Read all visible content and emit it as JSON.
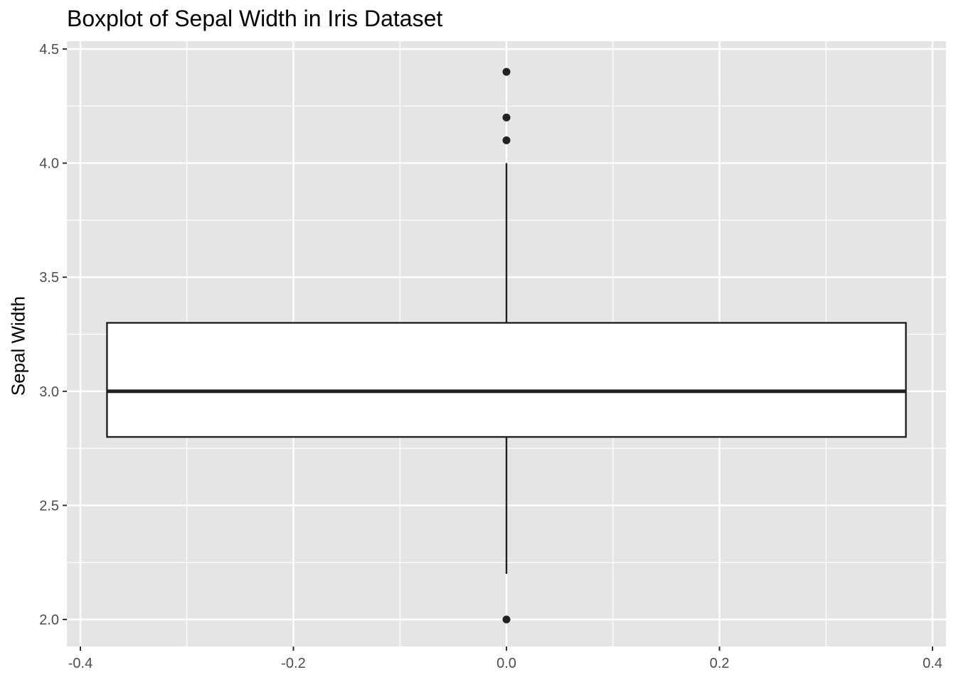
{
  "chart_data": {
    "type": "boxplot",
    "title": "Boxplot of Sepal Width in Iris Dataset",
    "xlabel": "",
    "ylabel": "Sepal Width",
    "xlim": [
      -0.4,
      0.4
    ],
    "ylim": [
      2.0,
      4.5
    ],
    "x_ticks": [
      "-0.4",
      "-0.2",
      "0.0",
      "0.2",
      "0.4"
    ],
    "y_ticks": [
      "2.0",
      "2.5",
      "3.0",
      "3.5",
      "4.0",
      "4.5"
    ],
    "grid": true,
    "box": {
      "x_center": 0.0,
      "x_min": -0.375,
      "x_max": 0.375,
      "whisker_low": 2.2,
      "q1": 2.8,
      "median": 3.0,
      "q3": 3.3,
      "whisker_high": 4.0,
      "outliers": [
        4.4,
        4.2,
        4.1,
        2.0
      ]
    },
    "colors": {
      "panel_background": "#e5e5e5",
      "grid": "#ffffff",
      "box_fill": "#ffffff",
      "box_line": "#222222",
      "points": "#222222"
    }
  }
}
